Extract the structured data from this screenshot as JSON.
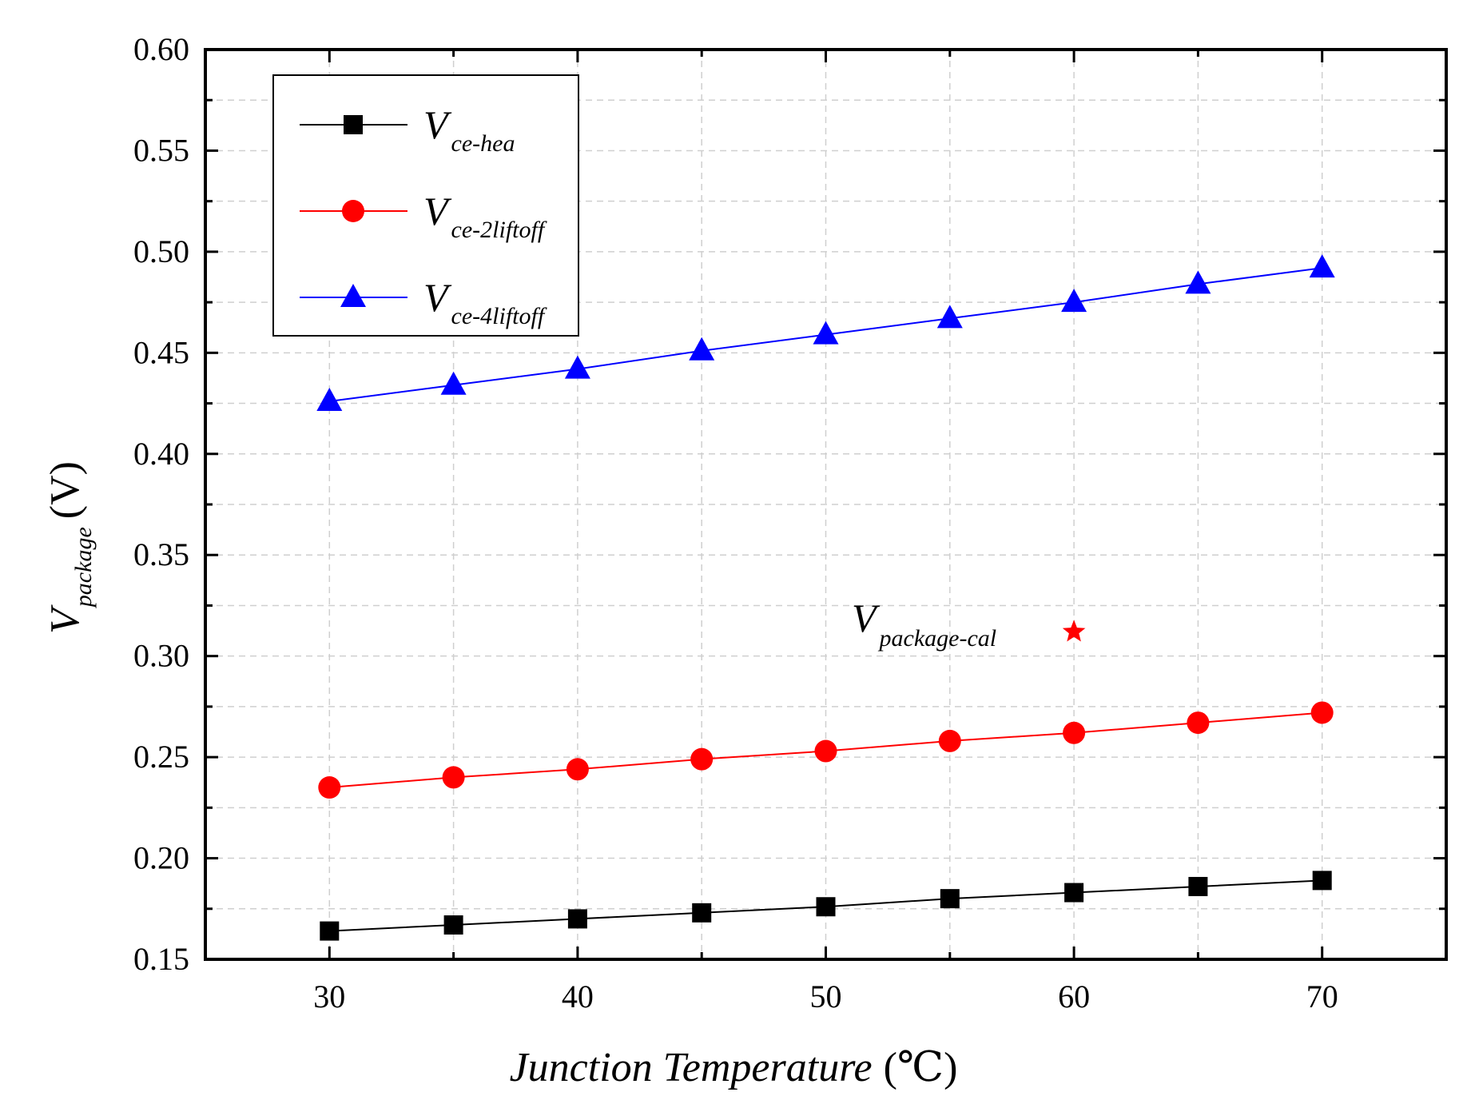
{
  "chart_data": {
    "type": "line",
    "title": "",
    "xlabel": "Junction Temperature (℃)",
    "xlabel_main": "Junction Temperature",
    "xlabel_unit": "(℃)",
    "ylabel_main": "V",
    "ylabel_sub": "package",
    "ylabel_unit": "(V)",
    "xlim": [
      25,
      75
    ],
    "ylim": [
      0.15,
      0.6
    ],
    "grid": true,
    "legend_position": "top-left",
    "x_ticks": [
      "30",
      "40",
      "50",
      "60",
      "70"
    ],
    "y_ticks": [
      "0.15",
      "0.20",
      "0.25",
      "0.30",
      "0.35",
      "0.40",
      "0.45",
      "0.50",
      "0.55",
      "0.60"
    ],
    "x": [
      30,
      35,
      40,
      45,
      50,
      55,
      60,
      65,
      70
    ],
    "series": [
      {
        "name": "V ce-hea",
        "main": "V",
        "sub": "ce-hea",
        "color": "#000000",
        "marker": "square",
        "values": [
          0.164,
          0.167,
          0.17,
          0.173,
          0.176,
          0.18,
          0.183,
          0.186,
          0.189
        ]
      },
      {
        "name": "V ce-2liftoff",
        "main": "V",
        "sub": "ce-2liftoff",
        "color": "#ff0000",
        "marker": "circle",
        "values": [
          0.235,
          0.24,
          0.244,
          0.249,
          0.253,
          0.258,
          0.262,
          0.267,
          0.272
        ]
      },
      {
        "name": "V ce-4liftoff",
        "main": "V",
        "sub": "ce-4liftoff",
        "color": "#0000ff",
        "marker": "triangle",
        "values": [
          0.426,
          0.434,
          0.442,
          0.451,
          0.459,
          0.467,
          0.475,
          0.484,
          0.492
        ]
      }
    ],
    "annotation": {
      "main": "V",
      "sub": "package-cal",
      "x": 60,
      "y": 0.312,
      "color": "#ff0000",
      "marker": "star"
    }
  }
}
